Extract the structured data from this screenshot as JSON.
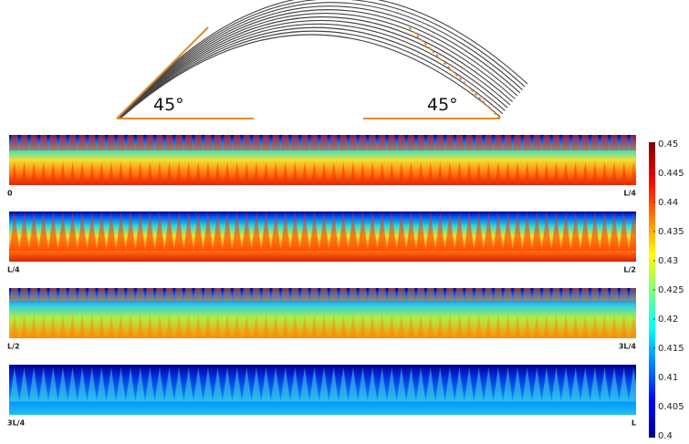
{
  "figure": {
    "angles": [
      "45°",
      "45°"
    ],
    "strips": [
      {
        "left": "0",
        "right": "L/4"
      },
      {
        "left": "L/4",
        "right": "L/2"
      },
      {
        "left": "L/2",
        "right": "3L/4"
      },
      {
        "left": "3L/4",
        "right": "L"
      }
    ],
    "colorbar": {
      "lim": [
        0.4,
        0.45
      ],
      "ticks": [
        0.4,
        0.405,
        0.41,
        0.415,
        0.42,
        0.425,
        0.43,
        0.435,
        0.44,
        0.445,
        0.45
      ]
    }
  }
}
